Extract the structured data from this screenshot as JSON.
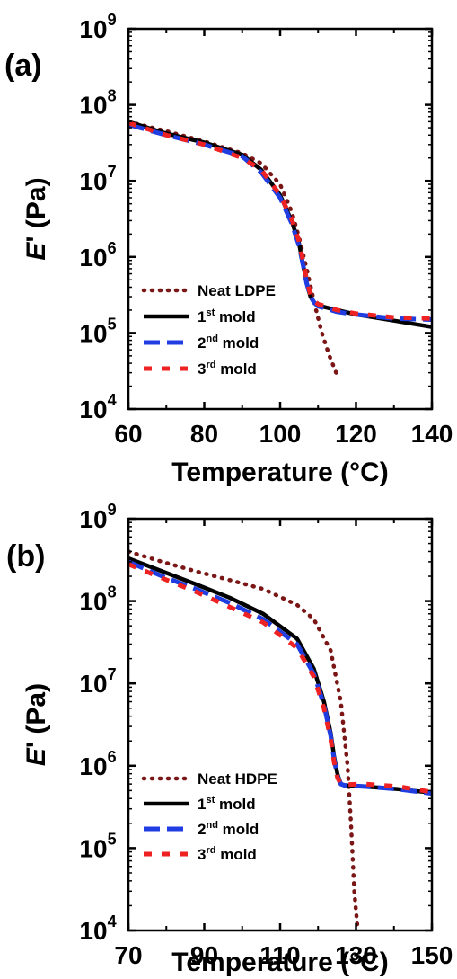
{
  "chart_data": [
    {
      "panel_label": "(a)",
      "type": "line",
      "xlabel": "Temperature (°C)",
      "ylabel_main": "E",
      "ylabel_rest": "' (Pa)",
      "xlim": [
        60,
        140
      ],
      "ylim": [
        10000,
        1000000000
      ],
      "yscale": "log",
      "xticks": [
        "60",
        "80",
        "100",
        "120",
        "140"
      ],
      "yticks": [
        {
          "base": "10",
          "exp": "4"
        },
        {
          "base": "10",
          "exp": "5"
        },
        {
          "base": "10",
          "exp": "6"
        },
        {
          "base": "10",
          "exp": "7"
        },
        {
          "base": "10",
          "exp": "8"
        },
        {
          "base": "10",
          "exp": "9"
        }
      ],
      "legend_position": "bottom-left",
      "series": [
        {
          "name": "Neat LDPE",
          "name_pre": "",
          "name_sup": "",
          "name_post": "Neat LDPE",
          "color": "#7a1616",
          "style": "dotted",
          "x": [
            60,
            70,
            80,
            90,
            95,
            100,
            103,
            105,
            107,
            109,
            111,
            113,
            115
          ],
          "y": [
            60000000,
            45000000,
            33000000,
            23000000,
            17000000,
            9000000,
            4000000,
            1800000,
            700000,
            250000,
            100000,
            50000,
            28000
          ]
        },
        {
          "name": "1st mold",
          "name_pre": "1",
          "name_sup": "st",
          "name_post": " mold",
          "color": "#000000",
          "style": "solid",
          "x": [
            60,
            70,
            80,
            90,
            95,
            100,
            103,
            105,
            106,
            107,
            108,
            109,
            110,
            115,
            120,
            130,
            140
          ],
          "y": [
            60000000,
            42000000,
            32000000,
            22000000,
            14000000,
            6500000,
            3000000,
            1500000,
            800000,
            450000,
            300000,
            250000,
            230000,
            200000,
            175000,
            145000,
            120000
          ]
        },
        {
          "name": "2nd mold",
          "name_pre": "2",
          "name_sup": "nd",
          "name_post": " mold",
          "color": "#1f3de0",
          "style": "dashed",
          "x": [
            60,
            70,
            80,
            90,
            95,
            100,
            103,
            105,
            106,
            107,
            108,
            109,
            110,
            115,
            120,
            130,
            140
          ],
          "y": [
            55000000,
            40000000,
            30000000,
            21000000,
            13000000,
            6000000,
            2800000,
            1400000,
            800000,
            450000,
            300000,
            250000,
            225000,
            190000,
            175000,
            155000,
            150000
          ]
        },
        {
          "name": "3rd mold",
          "name_pre": "3",
          "name_sup": "rd",
          "name_post": " mold",
          "color": "#ee2222",
          "style": "dashed-short",
          "x": [
            60,
            70,
            80,
            90,
            95,
            100,
            103,
            105,
            106,
            107,
            108,
            109,
            110,
            115,
            120,
            130,
            140
          ],
          "y": [
            58000000,
            40000000,
            30000000,
            20000000,
            14000000,
            6500000,
            3200000,
            1600000,
            900000,
            500000,
            320000,
            260000,
            240000,
            200000,
            180000,
            160000,
            155000
          ]
        }
      ]
    },
    {
      "panel_label": "(b)",
      "type": "line",
      "xlabel": "Temperature (°C)",
      "ylabel_main": "E",
      "ylabel_rest": "' (Pa)",
      "xlim": [
        70,
        160
      ],
      "ylim": [
        10000,
        1000000000
      ],
      "yscale": "log",
      "xticks": [
        "70",
        "90",
        "110",
        "130",
        "150"
      ],
      "yticks": [
        {
          "base": "10",
          "exp": "4"
        },
        {
          "base": "10",
          "exp": "5"
        },
        {
          "base": "10",
          "exp": "6"
        },
        {
          "base": "10",
          "exp": "7"
        },
        {
          "base": "10",
          "exp": "8"
        },
        {
          "base": "10",
          "exp": "9"
        }
      ],
      "legend_position": "bottom-left",
      "series": [
        {
          "name": "Neat HDPE",
          "name_pre": "",
          "name_sup": "",
          "name_post": "Neat HDPE",
          "color": "#7a1616",
          "style": "dotted",
          "x": [
            70,
            80,
            90,
            100,
            110,
            120,
            125,
            130,
            133,
            135,
            136,
            137,
            138
          ],
          "y": [
            400000000,
            300000000,
            230000000,
            180000000,
            140000000,
            90000000,
            60000000,
            25000000,
            6000000,
            1000000,
            200000,
            30000,
            10000
          ]
        },
        {
          "name": "1st mold",
          "name_pre": "1",
          "name_sup": "st",
          "name_post": " mold",
          "color": "#000000",
          "style": "solid",
          "x": [
            70,
            80,
            90,
            100,
            110,
            120,
            125,
            128,
            130,
            131,
            132,
            133,
            134,
            140,
            150,
            160
          ],
          "y": [
            330000000,
            230000000,
            160000000,
            110000000,
            70000000,
            35000000,
            15000000,
            6000000,
            2500000,
            1300000,
            800000,
            600000,
            580000,
            560000,
            520000,
            470000
          ]
        },
        {
          "name": "2nd mold",
          "name_pre": "2",
          "name_sup": "nd",
          "name_post": " mold",
          "color": "#1f3de0",
          "style": "dashed",
          "x": [
            70,
            80,
            90,
            100,
            110,
            120,
            125,
            128,
            130,
            131,
            132,
            133,
            134,
            140,
            150,
            160
          ],
          "y": [
            300000000,
            200000000,
            140000000,
            95000000,
            60000000,
            30000000,
            13000000,
            5500000,
            2300000,
            1200000,
            750000,
            600000,
            580000,
            560000,
            520000,
            460000
          ]
        },
        {
          "name": "3rd mold",
          "name_pre": "3",
          "name_sup": "rd",
          "name_post": " mold",
          "color": "#ee2222",
          "style": "dashed-short",
          "x": [
            70,
            80,
            90,
            100,
            110,
            120,
            125,
            128,
            130,
            131,
            132,
            133,
            134,
            140,
            150,
            160
          ],
          "y": [
            280000000,
            190000000,
            130000000,
            85000000,
            55000000,
            27000000,
            12000000,
            5000000,
            2100000,
            1100000,
            720000,
            600000,
            590000,
            600000,
            560000,
            480000
          ]
        }
      ]
    }
  ]
}
